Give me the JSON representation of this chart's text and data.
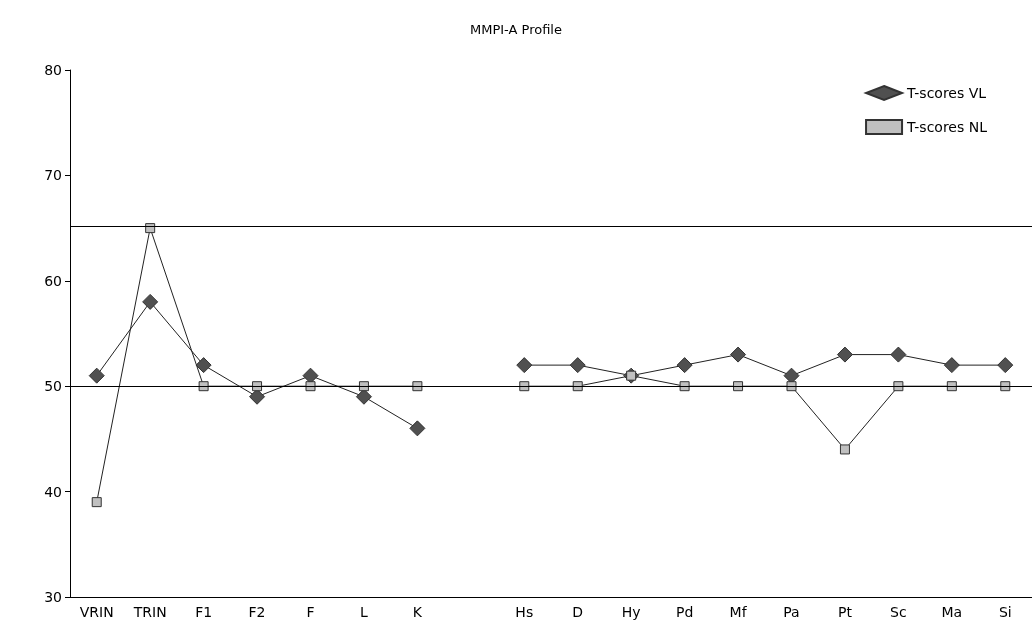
{
  "chart_data": {
    "type": "line",
    "title": "MMPI-A Profile",
    "categories": [
      "VRIN",
      "TRIN",
      "F1",
      "F2",
      "F",
      "L",
      "K",
      null,
      "Hs",
      "D",
      "Hy",
      "Pd",
      "Mf",
      "Pa",
      "Pt",
      "Sc",
      "Ma",
      "Si"
    ],
    "series": [
      {
        "name": "T-scores VL",
        "color": "#505050",
        "marker": "diamond",
        "values": [
          51,
          58,
          52,
          49,
          51,
          49,
          46,
          null,
          52,
          52,
          51,
          52,
          53,
          51,
          53,
          53,
          52,
          52
        ]
      },
      {
        "name": "T-scores NL",
        "color": "#c0c0c0",
        "marker": "square",
        "values": [
          39,
          65,
          50,
          50,
          50,
          50,
          50,
          null,
          50,
          50,
          51,
          50,
          50,
          50,
          44,
          50,
          50,
          50
        ]
      }
    ],
    "ylim": [
      30,
      80
    ],
    "yticks": [
      30,
      40,
      50,
      60,
      70,
      80
    ],
    "ref_lines": [
      {
        "axis": "y",
        "value": 65.2,
        "color": "#000000"
      },
      {
        "axis": "y",
        "value": 50,
        "color": "#000000"
      }
    ],
    "grid": false,
    "legend": "top right",
    "line_style": "solid"
  }
}
